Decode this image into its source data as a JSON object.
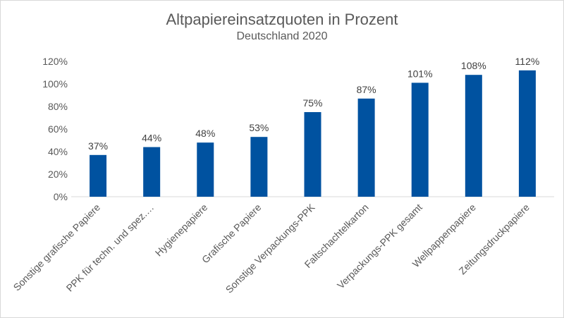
{
  "chart_data": {
    "type": "bar",
    "title": "Altpapiereinsatzquoten in Prozent",
    "subtitle": "Deutschland 2020",
    "categories": [
      "Sonstige grafische Papiere",
      "PPK für techn. und spez.…",
      "Hygienepapiere",
      "Grafische Papiere",
      "Sonstige Verpackungs-PPK",
      "Faltschachtelkarton",
      "Verpackungs-PPK gesamt",
      "Wellpappenpapiere",
      "Zeitungsdruckpapiere"
    ],
    "values": [
      37,
      44,
      48,
      53,
      75,
      87,
      101,
      108,
      112
    ],
    "data_labels": [
      "37%",
      "44%",
      "48%",
      "53%",
      "75%",
      "87%",
      "101%",
      "108%",
      "112%"
    ],
    "y_ticks": [
      "0%",
      "20%",
      "40%",
      "60%",
      "80%",
      "100%",
      "120%"
    ],
    "ylim": [
      0,
      120
    ],
    "grid": false,
    "legend": "none",
    "bar_color": "#0052A0",
    "axis_color": "#d9d9d9"
  }
}
